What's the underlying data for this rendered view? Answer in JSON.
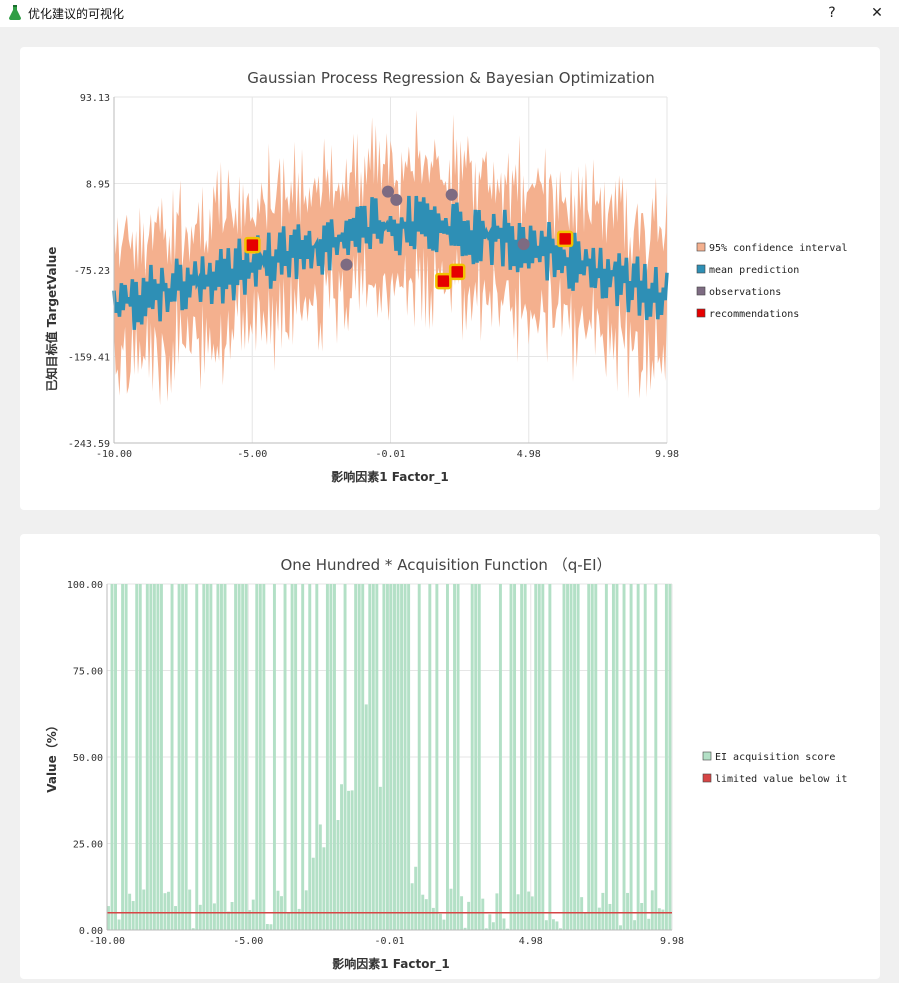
{
  "window": {
    "title": "优化建议的可视化",
    "help_label": "?",
    "close_label": "✕",
    "app_icon": "flask-icon"
  },
  "colors": {
    "ci": "#f4b08e",
    "mean": "#2e8fb5",
    "observation": "#7d6b82",
    "recommendation": "#e60000",
    "recommendation_border": "#f2c200",
    "acquisition": "#b3e0c6",
    "limit_line": "#d64545"
  },
  "chart_data": [
    {
      "type": "line",
      "title": "Gaussian Process Regression & Bayesian Optimization",
      "xlabel": "影响因素1 Factor_1",
      "ylabel": "已知目标值 TargetValue",
      "xlim": [
        -10.0,
        9.98
      ],
      "ylim": [
        -243.59,
        93.13
      ],
      "xticks": [
        "-10.00",
        "-5.00",
        "-0.01",
        "4.98",
        "9.98"
      ],
      "yticks": [
        "93.13",
        "8.95",
        "-75.23",
        "-159.41",
        "-243.59"
      ],
      "grid": true,
      "legend_position": "right",
      "legend": [
        "95% confidence interval",
        "mean prediction",
        "observations",
        "recommendations"
      ],
      "mean_trend": {
        "x": [
          -10,
          -7,
          -5,
          -3,
          -1,
          0,
          2,
          4,
          6,
          8,
          9.98
        ],
        "y": [
          -110,
          -85,
          -70,
          -55,
          -35,
          -30,
          -35,
          -45,
          -60,
          -80,
          -105
        ]
      },
      "mean_oscillation_amplitude": 30,
      "ci_halfwidth": 60,
      "observations": {
        "x": [
          -1.6,
          -0.1,
          0.2,
          2.2,
          4.8
        ],
        "y": [
          -70,
          1,
          -7,
          -2,
          -50
        ]
      },
      "recommendations": {
        "x": [
          -5.0,
          1.9,
          2.4,
          6.3
        ],
        "y": [
          -51,
          -86,
          -77,
          -45
        ]
      }
    },
    {
      "type": "bar",
      "title": "One Hundred * Acquisition Function （q-EI）",
      "xlabel": "影响因素1 Factor_1",
      "ylabel": "Value（%）",
      "xlim": [
        -10.0,
        9.98
      ],
      "ylim": [
        0,
        100
      ],
      "xticks": [
        "-10.00",
        "-5.00",
        "-0.01",
        "4.98",
        "9.98"
      ],
      "yticks": [
        "100.00",
        "75.00",
        "50.00",
        "25.00",
        "0.00"
      ],
      "grid": true,
      "legend_position": "right",
      "legend": [
        "EI acquisition score",
        "limited value below it"
      ],
      "bar_count": 160,
      "full_height_fraction": 0.55,
      "limit_value": 5
    }
  ]
}
